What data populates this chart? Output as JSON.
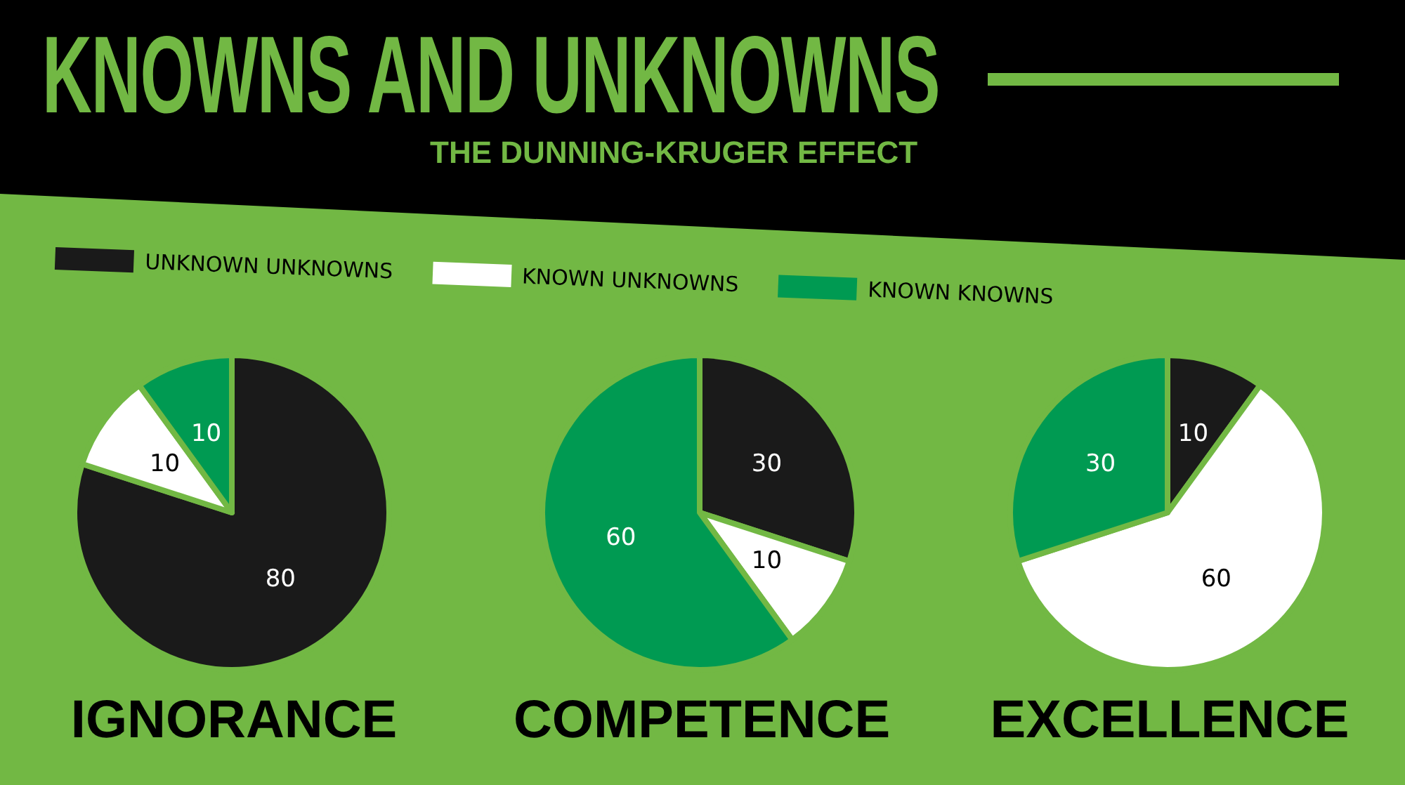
{
  "chart_data": [
    {
      "type": "other",
      "title": "KNOWNS AND UNKNOWNS",
      "subtitle": "THE DUNNING-KRUGER EFFECT"
    },
    {
      "type": "pie",
      "title": "IGNORANCE",
      "categories": [
        "UNKNOWN UNKNOWNS",
        "KNOWN UNKNOWNS",
        "KNOWN KNOWNS"
      ],
      "values": [
        80,
        10,
        10
      ],
      "colors": [
        "#1a1a1a",
        "#ffffff",
        "#009a52"
      ],
      "data_labels": true,
      "legend": "top"
    },
    {
      "type": "pie",
      "title": "COMPETENCE",
      "categories": [
        null,
        null,
        null
      ],
      "values": [
        30,
        10,
        60
      ],
      "colors": [
        "#1a1a1a",
        "#ffffff",
        "#009a52"
      ],
      "data_labels": true
    },
    {
      "type": "pie",
      "title": "EXCELLENCE",
      "categories": [
        null,
        null,
        null
      ],
      "values": [
        10,
        60,
        30
      ],
      "colors": [
        "#1a1a1a",
        "#ffffff",
        "#009a52"
      ],
      "data_labels": true
    }
  ]
}
